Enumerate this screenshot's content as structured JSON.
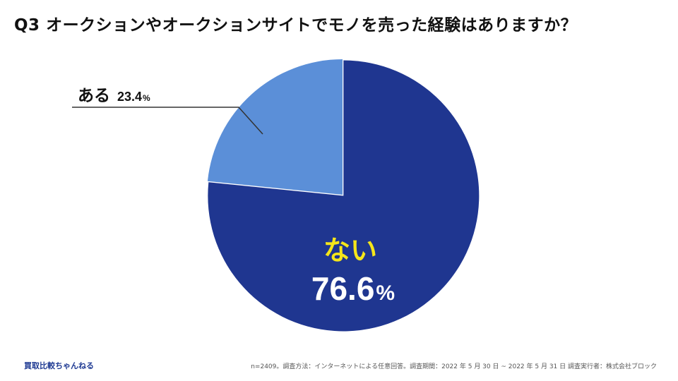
{
  "title": "Q3 オークションやオークションサイトでモノを売った経験はありますか？",
  "brand": "買取比較ちゃんねる",
  "footnote": "n=2409。調査方法：インターネットによる任意回答。調査期間：2022 年 5 月 30 日 ~ 2022 年 5 月 31 日 調査実行者：株式会社ブロック",
  "colors": {
    "no": "#1f3690",
    "yes": "#5b8fd8",
    "highlight": "#f5e61a",
    "text_dark": "#111111",
    "text_light": "#ffffff",
    "leader": "#333333"
  },
  "chart_data": {
    "type": "pie",
    "slices": [
      {
        "label": "ない",
        "value": 76.6,
        "display": "76.6",
        "unit": "%"
      },
      {
        "label": "ある",
        "value": 23.4,
        "display": "23.4",
        "unit": "%"
      }
    ]
  }
}
